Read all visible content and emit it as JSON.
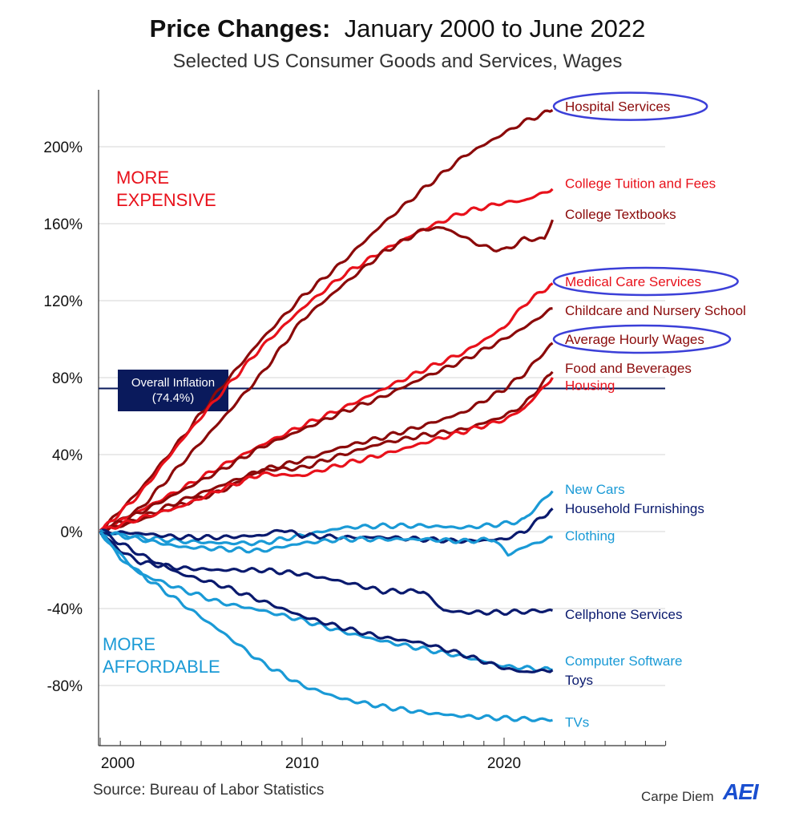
{
  "title_bold": "Price Changes:",
  "title_rest": "January 2000 to June 2022",
  "subtitle": "Selected US Consumer Goods and Services, Wages",
  "source": "Source: Bureau of Labor Statistics",
  "brand": "Carpe Diem",
  "logo_text": "AEI",
  "chart_data": {
    "type": "line",
    "xlim": [
      2000,
      2028
    ],
    "ylim": [
      -105,
      230
    ],
    "y_ticks": [
      -80,
      -40,
      0,
      40,
      80,
      120,
      160,
      200
    ],
    "y_tick_labels": [
      "-80%",
      "-40%",
      "0%",
      "40%",
      "80%",
      "120%",
      "160%",
      "200%"
    ],
    "x_ticks": [
      2000,
      2010,
      2020
    ],
    "x_tick_labels": [
      "2000",
      "2010",
      "2020"
    ],
    "grid": "horizontal",
    "reference_line": {
      "value": 74.4,
      "label_line1": "Overall Inflation",
      "label_line2": "(74.4%)",
      "color": "#0a1a5c"
    },
    "annotations": {
      "more_expensive": [
        "MORE",
        "EXPENSIVE"
      ],
      "more_affordable": [
        "MORE",
        "AFFORDABLE"
      ]
    },
    "series": [
      {
        "name": "Hospital Services",
        "color": "#8b0a0a",
        "circled": true,
        "label_y": 221,
        "points": [
          [
            2000,
            0
          ],
          [
            2002,
            22
          ],
          [
            2004,
            48
          ],
          [
            2006,
            75
          ],
          [
            2008,
            100
          ],
          [
            2010,
            122
          ],
          [
            2012,
            140
          ],
          [
            2014,
            160
          ],
          [
            2016,
            178
          ],
          [
            2018,
            195
          ],
          [
            2020,
            207
          ],
          [
            2021,
            213
          ],
          [
            2022.4,
            219
          ]
        ]
      },
      {
        "name": "College Tuition and Fees",
        "color": "#e8111b",
        "circled": false,
        "label_y": 181,
        "points": [
          [
            2000,
            0
          ],
          [
            2002,
            20
          ],
          [
            2004,
            47
          ],
          [
            2006,
            72
          ],
          [
            2008,
            96
          ],
          [
            2010,
            116
          ],
          [
            2012,
            133
          ],
          [
            2014,
            146
          ],
          [
            2016,
            157
          ],
          [
            2018,
            166
          ],
          [
            2020,
            171
          ],
          [
            2021,
            172
          ],
          [
            2022.4,
            178
          ]
        ]
      },
      {
        "name": "College Textbooks",
        "color": "#8b0a0a",
        "circled": false,
        "label_y": 165,
        "points": [
          [
            2000,
            0
          ],
          [
            2002,
            12
          ],
          [
            2004,
            35
          ],
          [
            2006,
            58
          ],
          [
            2008,
            82
          ],
          [
            2010,
            110
          ],
          [
            2012,
            128
          ],
          [
            2014,
            145
          ],
          [
            2016,
            157
          ],
          [
            2017,
            158
          ],
          [
            2018,
            153
          ],
          [
            2019,
            148
          ],
          [
            2020,
            146
          ],
          [
            2021,
            152
          ],
          [
            2022,
            152
          ],
          [
            2022.4,
            162
          ]
        ]
      },
      {
        "name": "Medical Care Services",
        "color": "#e8111b",
        "circled": true,
        "label_y": 130,
        "points": [
          [
            2000,
            0
          ],
          [
            2002,
            11
          ],
          [
            2004,
            22
          ],
          [
            2006,
            34
          ],
          [
            2008,
            45
          ],
          [
            2010,
            55
          ],
          [
            2012,
            64
          ],
          [
            2014,
            74
          ],
          [
            2016,
            84
          ],
          [
            2018,
            93
          ],
          [
            2020,
            106
          ],
          [
            2021,
            118
          ],
          [
            2022.4,
            129
          ]
        ]
      },
      {
        "name": "Childcare and Nursery School",
        "color": "#8b0a0a",
        "circled": false,
        "label_y": 115,
        "points": [
          [
            2000,
            0
          ],
          [
            2002,
            10
          ],
          [
            2004,
            21
          ],
          [
            2006,
            32
          ],
          [
            2008,
            44
          ],
          [
            2010,
            53
          ],
          [
            2012,
            62
          ],
          [
            2014,
            70
          ],
          [
            2016,
            80
          ],
          [
            2018,
            89
          ],
          [
            2020,
            100
          ],
          [
            2021,
            106
          ],
          [
            2022.4,
            116
          ]
        ]
      },
      {
        "name": "Average Hourly Wages",
        "color": "#8b0a0a",
        "circled": true,
        "label_y": 100,
        "points": [
          [
            2000,
            0
          ],
          [
            2002,
            7
          ],
          [
            2004,
            16
          ],
          [
            2006,
            24
          ],
          [
            2008,
            32
          ],
          [
            2010,
            37
          ],
          [
            2012,
            44
          ],
          [
            2014,
            49
          ],
          [
            2016,
            55
          ],
          [
            2018,
            62
          ],
          [
            2020,
            74
          ],
          [
            2021,
            82
          ],
          [
            2022.4,
            98
          ]
        ]
      },
      {
        "name": "Food and Beverages",
        "color": "#8b0a0a",
        "circled": false,
        "label_y": 85,
        "points": [
          [
            2000,
            0
          ],
          [
            2002,
            6
          ],
          [
            2004,
            14
          ],
          [
            2006,
            21
          ],
          [
            2008,
            32
          ],
          [
            2010,
            33
          ],
          [
            2012,
            40
          ],
          [
            2014,
            46
          ],
          [
            2016,
            50
          ],
          [
            2018,
            53
          ],
          [
            2020,
            60
          ],
          [
            2021,
            66
          ],
          [
            2022.4,
            83
          ]
        ]
      },
      {
        "name": "Housing",
        "color": "#e8111b",
        "circled": false,
        "label_y": 76,
        "points": [
          [
            2000,
            0
          ],
          [
            2002,
            7
          ],
          [
            2004,
            13
          ],
          [
            2006,
            22
          ],
          [
            2008,
            30
          ],
          [
            2010,
            29
          ],
          [
            2012,
            35
          ],
          [
            2014,
            40
          ],
          [
            2016,
            46
          ],
          [
            2018,
            52
          ],
          [
            2020,
            58
          ],
          [
            2021,
            64
          ],
          [
            2022.4,
            80
          ]
        ]
      },
      {
        "name": "New Cars",
        "color": "#1a9ad6",
        "circled": false,
        "label_y": 22,
        "points": [
          [
            2000,
            0
          ],
          [
            2002,
            -3
          ],
          [
            2004,
            -5
          ],
          [
            2006,
            -6
          ],
          [
            2008,
            -6
          ],
          [
            2010,
            -2
          ],
          [
            2012,
            2
          ],
          [
            2014,
            3
          ],
          [
            2016,
            3
          ],
          [
            2018,
            2
          ],
          [
            2020,
            4
          ],
          [
            2021,
            6
          ],
          [
            2021.5,
            12
          ],
          [
            2022.4,
            21
          ]
        ]
      },
      {
        "name": "Household Furnishings",
        "color": "#0a1a6e",
        "circled": false,
        "label_y": 12,
        "points": [
          [
            2000,
            0
          ],
          [
            2002,
            -1
          ],
          [
            2004,
            -3
          ],
          [
            2006,
            -3
          ],
          [
            2008,
            -2
          ],
          [
            2009,
            1
          ],
          [
            2010,
            -2
          ],
          [
            2012,
            -3
          ],
          [
            2014,
            -3
          ],
          [
            2016,
            -4
          ],
          [
            2018,
            -5
          ],
          [
            2020,
            -4
          ],
          [
            2021,
            0
          ],
          [
            2022.4,
            12
          ]
        ]
      },
      {
        "name": "Clothing",
        "color": "#1a9ad6",
        "circled": false,
        "label_y": -2,
        "points": [
          [
            2000,
            0
          ],
          [
            2002,
            -4
          ],
          [
            2004,
            -8
          ],
          [
            2006,
            -9
          ],
          [
            2008,
            -10
          ],
          [
            2010,
            -6
          ],
          [
            2012,
            -4
          ],
          [
            2014,
            -4
          ],
          [
            2016,
            -4
          ],
          [
            2018,
            -5
          ],
          [
            2019.5,
            -4
          ],
          [
            2020.2,
            -12
          ],
          [
            2021,
            -8
          ],
          [
            2022.4,
            -3
          ]
        ]
      },
      {
        "name": "Cellphone Services",
        "color": "#0a1a6e",
        "circled": false,
        "label_y": -43,
        "points": [
          [
            2000,
            0
          ],
          [
            2001,
            -10
          ],
          [
            2002,
            -16
          ],
          [
            2004,
            -19
          ],
          [
            2006,
            -20
          ],
          [
            2008,
            -20
          ],
          [
            2010,
            -22
          ],
          [
            2012,
            -26
          ],
          [
            2014,
            -31
          ],
          [
            2016,
            -31
          ],
          [
            2017,
            -41
          ],
          [
            2018,
            -42
          ],
          [
            2020,
            -42
          ],
          [
            2022.4,
            -41
          ]
        ]
      },
      {
        "name": "Computer Software",
        "color": "#1a9ad6",
        "circled": false,
        "label_y": -67,
        "points": [
          [
            2000,
            0
          ],
          [
            2001,
            -14
          ],
          [
            2002,
            -22
          ],
          [
            2004,
            -30
          ],
          [
            2006,
            -37
          ],
          [
            2008,
            -41
          ],
          [
            2010,
            -46
          ],
          [
            2012,
            -52
          ],
          [
            2014,
            -57
          ],
          [
            2016,
            -61
          ],
          [
            2018,
            -65
          ],
          [
            2020,
            -70
          ],
          [
            2022.4,
            -72
          ]
        ]
      },
      {
        "name": "Toys",
        "color": "#0a1a6e",
        "circled": false,
        "label_y": -77,
        "points": [
          [
            2000,
            0
          ],
          [
            2002,
            -12
          ],
          [
            2004,
            -22
          ],
          [
            2006,
            -28
          ],
          [
            2008,
            -36
          ],
          [
            2010,
            -44
          ],
          [
            2012,
            -50
          ],
          [
            2014,
            -55
          ],
          [
            2016,
            -58
          ],
          [
            2018,
            -64
          ],
          [
            2020,
            -71
          ],
          [
            2021,
            -73
          ],
          [
            2022.4,
            -72
          ]
        ]
      },
      {
        "name": "TVs",
        "color": "#1a9ad6",
        "circled": false,
        "label_y": -99,
        "points": [
          [
            2000,
            0
          ],
          [
            2001,
            -12
          ],
          [
            2002,
            -22
          ],
          [
            2004,
            -37
          ],
          [
            2006,
            -52
          ],
          [
            2008,
            -68
          ],
          [
            2010,
            -80
          ],
          [
            2012,
            -87
          ],
          [
            2014,
            -91
          ],
          [
            2016,
            -94
          ],
          [
            2018,
            -96
          ],
          [
            2020,
            -97
          ],
          [
            2022.4,
            -98
          ]
        ]
      }
    ]
  }
}
